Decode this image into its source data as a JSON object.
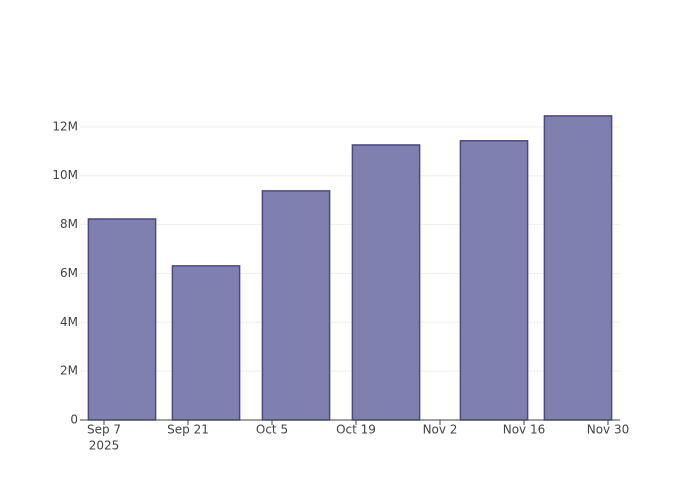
{
  "chart_data": {
    "type": "bar",
    "x": [
      "2025-09-10",
      "2025-09-24",
      "2025-10-09",
      "2025-10-24",
      "2025-11-11",
      "2025-11-25"
    ],
    "values": [
      8230000,
      6310000,
      9380000,
      11260000,
      11430000,
      12450000
    ],
    "color": "#7f7fb0",
    "edge_color": "#4b4b82",
    "xlim": [
      "2025-09-03",
      "2025-12-02"
    ],
    "xticks": [
      {
        "value": "2025-09-07",
        "label": "Sep 7",
        "sublabel": "2025"
      },
      {
        "value": "2025-09-21",
        "label": "Sep 21"
      },
      {
        "value": "2025-10-05",
        "label": "Oct 5"
      },
      {
        "value": "2025-10-19",
        "label": "Oct 19"
      },
      {
        "value": "2025-11-02",
        "label": "Nov 2"
      },
      {
        "value": "2025-11-16",
        "label": "Nov 16"
      },
      {
        "value": "2025-11-30",
        "label": "Nov 30"
      }
    ],
    "ylim": [
      0,
      13100000
    ],
    "yticks": [
      0,
      {
        "value": 2000000,
        "label": "2M"
      },
      {
        "value": 4000000,
        "label": "4M"
      },
      {
        "value": 6000000,
        "label": "6M"
      },
      {
        "value": 8000000,
        "label": "8M"
      },
      {
        "value": 10000000,
        "label": "10M"
      },
      {
        "value": 12000000,
        "label": "12M"
      }
    ],
    "grid": true
  }
}
